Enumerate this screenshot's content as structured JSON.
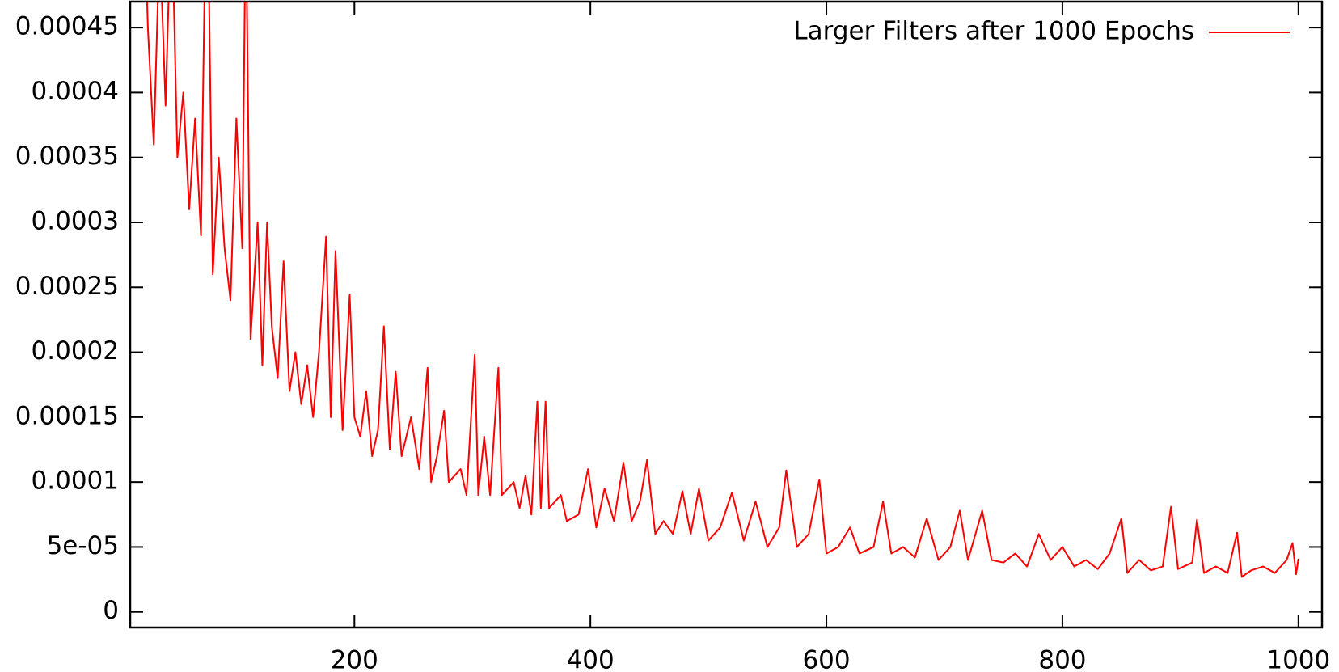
{
  "chart_data": {
    "type": "line",
    "series": [
      {
        "name": "Larger Filters after 1000 Epochs",
        "color": "#ff0000",
        "x": [
          20,
          25,
          30,
          35,
          40,
          45,
          50,
          55,
          60,
          65,
          70,
          75,
          80,
          85,
          90,
          95,
          100,
          105,
          108,
          112,
          118,
          122,
          126,
          130,
          135,
          140,
          145,
          150,
          155,
          160,
          165,
          170,
          176,
          180,
          184,
          190,
          196,
          200,
          205,
          210,
          215,
          220,
          225,
          230,
          235,
          240,
          248,
          255,
          262,
          265,
          270,
          276,
          280,
          290,
          295,
          302,
          305,
          310,
          315,
          322,
          325,
          335,
          340,
          345,
          350,
          355,
          358,
          362,
          365,
          375,
          380,
          390,
          398,
          405,
          412,
          420,
          428,
          435,
          442,
          448,
          455,
          462,
          470,
          478,
          485,
          492,
          500,
          510,
          520,
          530,
          540,
          550,
          560,
          566,
          575,
          585,
          594,
          600,
          610,
          620,
          628,
          640,
          648,
          655,
          665,
          675,
          685,
          695,
          705,
          713,
          720,
          732,
          740,
          750,
          760,
          770,
          780,
          790,
          800,
          810,
          820,
          830,
          840,
          850,
          855,
          865,
          875,
          885,
          892,
          898,
          910,
          914,
          920,
          930,
          940,
          948,
          952,
          960,
          970,
          980,
          990,
          995,
          998,
          1000
        ],
        "values": [
          0.0006,
          0.00045,
          0.00036,
          0.00052,
          0.00039,
          0.00055,
          0.00035,
          0.0004,
          0.00031,
          0.00038,
          0.00029,
          0.0006,
          0.00026,
          0.00035,
          0.00028,
          0.00024,
          0.00038,
          0.00028,
          0.00055,
          0.00021,
          0.0003,
          0.00019,
          0.0003,
          0.00022,
          0.00018,
          0.00027,
          0.00017,
          0.0002,
          0.00016,
          0.00019,
          0.00015,
          0.0002,
          0.000289,
          0.00015,
          0.000278,
          0.00014,
          0.000244,
          0.00015,
          0.000135,
          0.00017,
          0.00012,
          0.00014,
          0.00022,
          0.000125,
          0.000185,
          0.00012,
          0.00015,
          0.00011,
          0.000188,
          0.0001,
          0.00012,
          0.000155,
          0.0001,
          0.00011,
          9e-05,
          0.000198,
          9e-05,
          0.000135,
          9e-05,
          0.000188,
          9e-05,
          0.0001,
          8e-05,
          0.000105,
          7.5e-05,
          0.000162,
          8e-05,
          0.000162,
          8e-05,
          9e-05,
          7e-05,
          7.5e-05,
          0.00011,
          6.5e-05,
          9.5e-05,
          7e-05,
          0.000115,
          7e-05,
          8.5e-05,
          0.000117,
          6e-05,
          7e-05,
          6e-05,
          9.3e-05,
          6e-05,
          9.5e-05,
          5.5e-05,
          6.5e-05,
          9.2e-05,
          5.5e-05,
          8.5e-05,
          5e-05,
          6.5e-05,
          0.000109,
          5e-05,
          6e-05,
          0.000102,
          4.5e-05,
          5e-05,
          6.5e-05,
          4.5e-05,
          5e-05,
          8.5e-05,
          4.5e-05,
          5e-05,
          4.2e-05,
          7.2e-05,
          4e-05,
          5e-05,
          7.8e-05,
          4e-05,
          7.8e-05,
          4e-05,
          3.8e-05,
          4.5e-05,
          3.5e-05,
          6e-05,
          4e-05,
          5e-05,
          3.5e-05,
          4e-05,
          3.3e-05,
          4.5e-05,
          7.2e-05,
          3e-05,
          4e-05,
          3.2e-05,
          3.5e-05,
          8.1e-05,
          3.3e-05,
          3.8e-05,
          7.1e-05,
          3e-05,
          3.5e-05,
          3e-05,
          6.1e-05,
          2.7e-05,
          3.2e-05,
          3.5e-05,
          3e-05,
          4e-05,
          5.3e-05,
          2.9e-05,
          4.1e-05
        ]
      }
    ],
    "xlim": [
      10,
      1020
    ],
    "xticks": [
      200,
      400,
      600,
      800,
      1000
    ],
    "ylim": [
      -1.2e-05,
      0.00047
    ],
    "yticks": [
      0,
      {
        "value": 5e-05,
        "label": "5e-05"
      },
      0.0001,
      0.00015,
      0.0002,
      0.00025,
      0.0003,
      0.00035,
      0.0004,
      0.00045
    ],
    "legend": "top-right"
  }
}
